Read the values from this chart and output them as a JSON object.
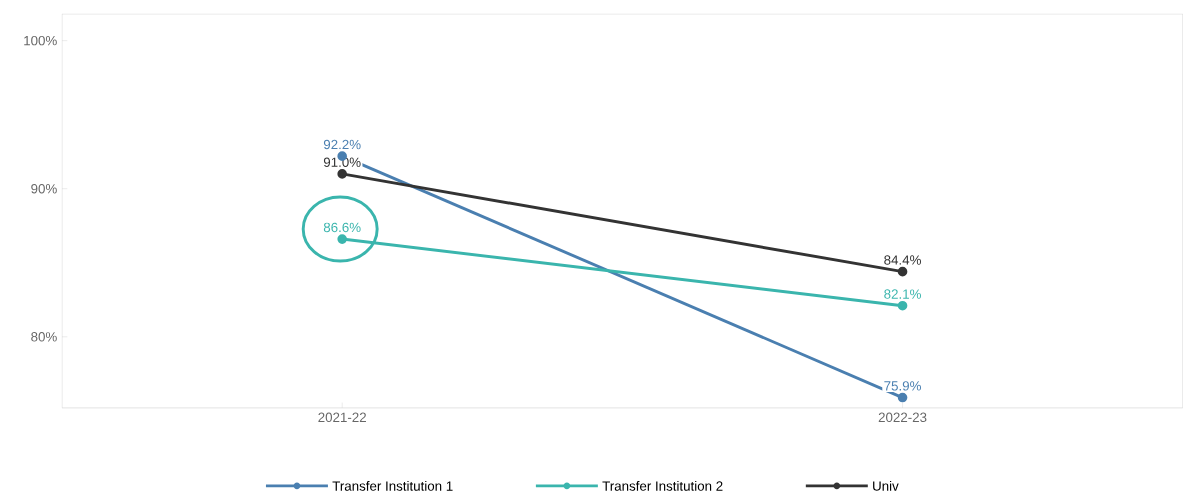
{
  "chart_data": {
    "type": "line",
    "categories": [
      "2021-22",
      "2022-23"
    ],
    "series": [
      {
        "name": "Transfer Institution 1",
        "color": "#4a7fb0",
        "values": [
          92.2,
          75.9
        ],
        "value_labels": [
          "92.2%",
          "75.9%"
        ]
      },
      {
        "name": "Transfer Institution 2",
        "color": "#3ab5ad",
        "values": [
          86.6,
          82.1
        ],
        "value_labels": [
          "86.6%",
          "82.1%"
        ]
      },
      {
        "name": "Univ",
        "color": "#333333",
        "values": [
          91.0,
          84.4
        ],
        "value_labels": [
          "91.0%",
          "84.4%"
        ]
      }
    ],
    "ylim": [
      75.2,
      101.8
    ],
    "yticks": [
      {
        "value": 80,
        "label": "80%"
      },
      {
        "value": 90,
        "label": "90%"
      },
      {
        "value": 100,
        "label": "100%"
      }
    ],
    "grid": false,
    "legend": "bottom",
    "marker": "circle",
    "line_style": "solid"
  }
}
